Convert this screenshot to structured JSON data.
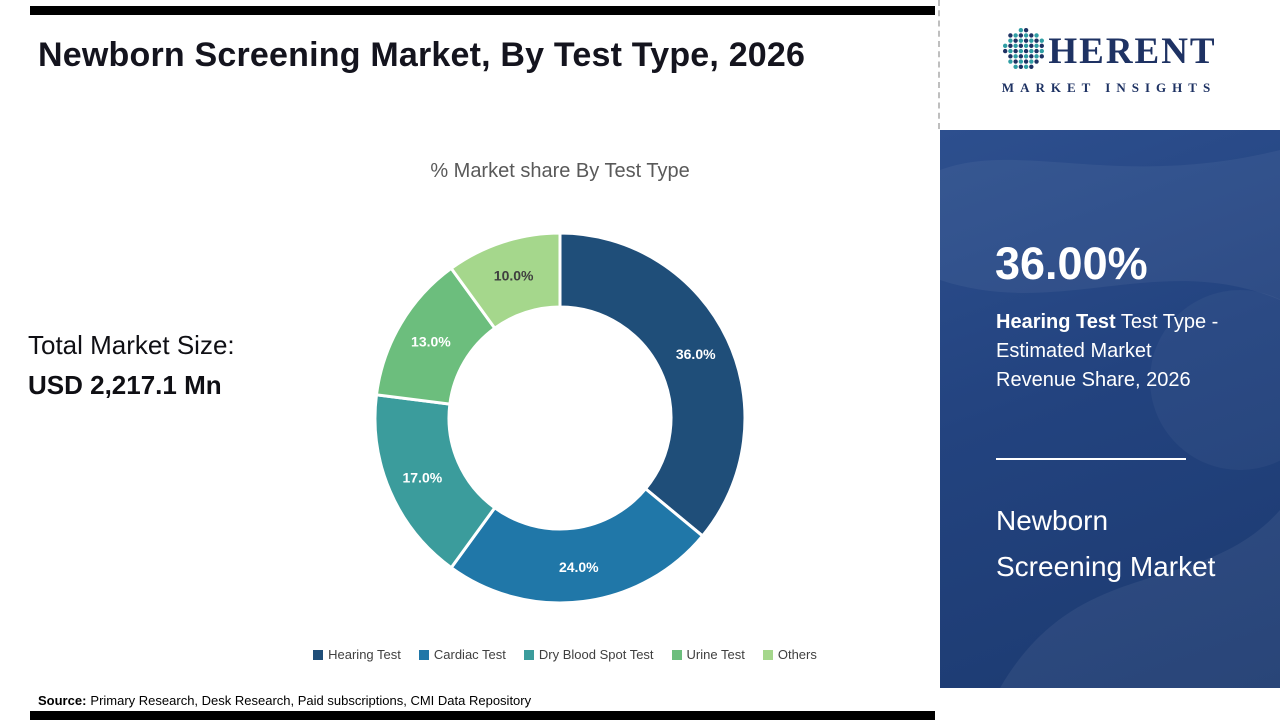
{
  "page": {
    "title": "Newborn Screening Market, By Test Type, 2026"
  },
  "logo": {
    "full_name": "COHERENT",
    "wordmark_rest": "HERENT",
    "tagline": "MARKET INSIGHTS",
    "icon": "dotted-globe-c-icon",
    "navy": "#1e3263",
    "teal": "#2f9ea4"
  },
  "chart_data": {
    "type": "pie",
    "subtype": "donut",
    "title": "% Market share By Test Type",
    "categories": [
      "Hearing Test",
      "Cardiac Test",
      "Dry Blood Spot Test",
      "Urine Test",
      "Others"
    ],
    "values": [
      36.0,
      24.0,
      17.0,
      13.0,
      10.0
    ],
    "labels": [
      "36.0%",
      "24.0%",
      "17.0%",
      "13.0%",
      "10.0%"
    ],
    "colors": [
      "#1f4e79",
      "#2077a8",
      "#3b9c9c",
      "#6cbe7d",
      "#a5d78c"
    ],
    "label_colors": [
      "#ffffff",
      "#ffffff",
      "#ffffff",
      "#ffffff",
      "#3f3f3f"
    ],
    "start_angle_deg": -90,
    "direction": "clockwise",
    "legend_position": "bottom",
    "annotation": {
      "label": "Total Market Size:",
      "value": "USD 2,217.1 Mn"
    }
  },
  "sidebar": {
    "stat_value": "36.00%",
    "description_bold": "Hearing Test",
    "description_rest": " Test Type -\nEstimated Market\nRevenue Share, 2026",
    "market_name": "Newborn\nScreening Market"
  },
  "footer": {
    "source_label": "Source:",
    "source_text": "Primary Research, Desk Research, Paid subscriptions, CMI Data Repository"
  }
}
